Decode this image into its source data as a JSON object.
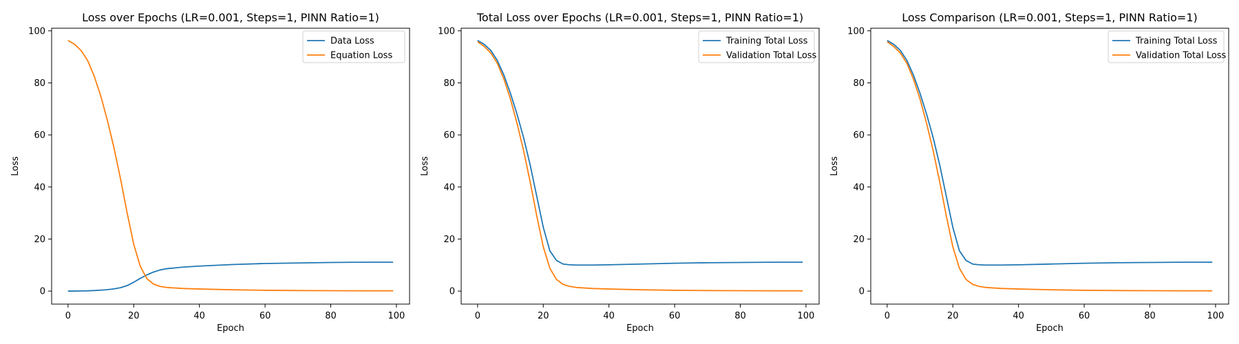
{
  "colors": {
    "blue": "#1f77b4",
    "orange": "#ff7f0e"
  },
  "chart_data": [
    {
      "type": "line",
      "title": "Loss over Epochs (LR=0.001, Steps=1, PINN Ratio=1)",
      "xlabel": "Epoch",
      "ylabel": "Loss",
      "xlim": [
        -5,
        104
      ],
      "ylim": [
        -5,
        101
      ],
      "xticks": [
        0,
        20,
        40,
        60,
        80,
        100
      ],
      "yticks": [
        0,
        20,
        40,
        60,
        80,
        100
      ],
      "legend": "top-right",
      "x": [
        0,
        2,
        4,
        6,
        8,
        10,
        12,
        14,
        16,
        18,
        20,
        22,
        24,
        26,
        28,
        30,
        35,
        40,
        50,
        60,
        70,
        80,
        90,
        99
      ],
      "series": [
        {
          "name": "Data Loss",
          "color": "#1f77b4",
          "values": [
            0.0,
            0.0,
            0.05,
            0.1,
            0.2,
            0.35,
            0.55,
            0.85,
            1.3,
            2.1,
            3.4,
            4.9,
            6.2,
            7.3,
            8.1,
            8.6,
            9.2,
            9.6,
            10.2,
            10.6,
            10.8,
            11.0,
            11.1,
            11.1
          ]
        },
        {
          "name": "Equation Loss",
          "color": "#ff7f0e",
          "values": [
            96.3,
            94.8,
            92.4,
            88.5,
            82.5,
            74.8,
            65.5,
            55.0,
            43.0,
            30.0,
            18.0,
            9.5,
            4.8,
            2.7,
            1.8,
            1.4,
            1.0,
            0.8,
            0.5,
            0.3,
            0.2,
            0.15,
            0.1,
            0.1
          ]
        }
      ]
    },
    {
      "type": "line",
      "title": "Total Loss over Epochs (LR=0.001, Steps=1, PINN Ratio=1)",
      "xlabel": "Epoch",
      "ylabel": "Loss",
      "xlim": [
        -5,
        104
      ],
      "ylim": [
        -5,
        101
      ],
      "xticks": [
        0,
        20,
        40,
        60,
        80,
        100
      ],
      "yticks": [
        0,
        20,
        40,
        60,
        80,
        100
      ],
      "legend": "top-right",
      "x": [
        0,
        2,
        4,
        6,
        8,
        10,
        12,
        14,
        16,
        18,
        20,
        22,
        24,
        26,
        28,
        30,
        35,
        40,
        50,
        60,
        70,
        80,
        90,
        99
      ],
      "series": [
        {
          "name": "Training Total Loss",
          "color": "#1f77b4",
          "values": [
            96.3,
            94.8,
            92.5,
            88.6,
            83.0,
            76.0,
            68.0,
            59.0,
            48.5,
            36.5,
            24.5,
            15.5,
            11.8,
            10.4,
            10.1,
            10.0,
            10.0,
            10.1,
            10.4,
            10.7,
            10.9,
            11.0,
            11.1,
            11.1
          ]
        },
        {
          "name": "Validation Total Loss",
          "color": "#ff7f0e",
          "values": [
            95.8,
            94.0,
            91.5,
            87.5,
            81.5,
            73.8,
            64.5,
            54.0,
            42.0,
            29.0,
            17.0,
            8.8,
            4.5,
            2.6,
            1.8,
            1.4,
            1.0,
            0.8,
            0.5,
            0.3,
            0.2,
            0.15,
            0.1,
            0.1
          ]
        }
      ]
    },
    {
      "type": "line",
      "title": "Loss Comparison (LR=0.001, Steps=1, PINN Ratio=1)",
      "xlabel": "Epoch",
      "ylabel": "Loss",
      "xlim": [
        -5,
        104
      ],
      "ylim": [
        -5,
        101
      ],
      "xticks": [
        0,
        20,
        40,
        60,
        80,
        100
      ],
      "yticks": [
        0,
        20,
        40,
        60,
        80,
        100
      ],
      "legend": "top-right",
      "x": [
        0,
        2,
        4,
        6,
        8,
        10,
        12,
        14,
        16,
        18,
        20,
        22,
        24,
        26,
        28,
        30,
        35,
        40,
        50,
        60,
        70,
        80,
        90,
        99
      ],
      "series": [
        {
          "name": "Training Total Loss",
          "color": "#1f77b4",
          "values": [
            96.3,
            94.8,
            92.5,
            88.6,
            83.0,
            76.0,
            68.0,
            59.0,
            48.5,
            36.5,
            24.5,
            15.5,
            11.8,
            10.4,
            10.1,
            10.0,
            10.0,
            10.1,
            10.4,
            10.7,
            10.9,
            11.0,
            11.1,
            11.1
          ]
        },
        {
          "name": "Validation Total Loss",
          "color": "#ff7f0e",
          "values": [
            95.8,
            94.0,
            91.5,
            87.5,
            81.5,
            73.8,
            64.5,
            54.0,
            42.0,
            29.0,
            17.0,
            8.8,
            4.5,
            2.6,
            1.8,
            1.4,
            1.0,
            0.8,
            0.5,
            0.3,
            0.2,
            0.15,
            0.1,
            0.1
          ]
        }
      ]
    }
  ]
}
